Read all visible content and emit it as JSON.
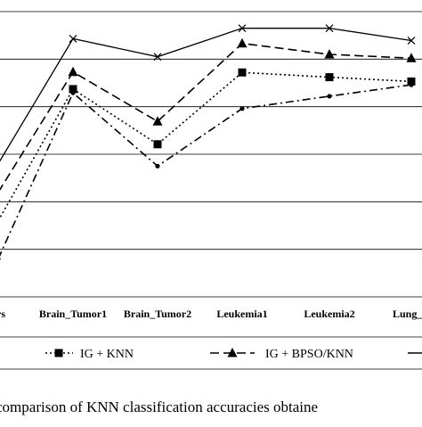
{
  "chart_data": {
    "type": "line",
    "title": "",
    "xlabel": "",
    "ylabel": "",
    "categories": [
      "ors",
      "Brain_Tumor1",
      "Brain_Tumor2",
      "Leukemia1",
      "Leukemia2",
      "Lung_C"
    ],
    "ylim": [
      0,
      6
    ],
    "grid": true,
    "legend_position": "bottom",
    "series": [
      {
        "name": "IG + KNN",
        "marker": "square",
        "dash": "dotted",
        "values": [
          1.6,
          4.37,
          3.21,
          4.72,
          4.62,
          4.53
        ]
      },
      {
        "name": "",
        "marker": "none",
        "dash": "dashdot",
        "values": [
          0.8,
          4.29,
          2.75,
          3.96,
          4.22,
          4.46
        ]
      },
      {
        "name": "IG + BPSO/KNN",
        "marker": "triangle",
        "dash": "dashed",
        "values": [
          2.2,
          4.73,
          3.69,
          5.33,
          5.1,
          5.02
        ]
      },
      {
        "name": "",
        "marker": "x",
        "dash": "solid",
        "values": [
          2.8,
          5.43,
          5.05,
          5.65,
          5.65,
          5.39
        ]
      }
    ]
  },
  "caption": {
    "text": "comparison of KNN classification accuracies obtaine"
  },
  "colors": {
    "line": "#000000",
    "grid": "#000000",
    "background": "#ffffff"
  }
}
